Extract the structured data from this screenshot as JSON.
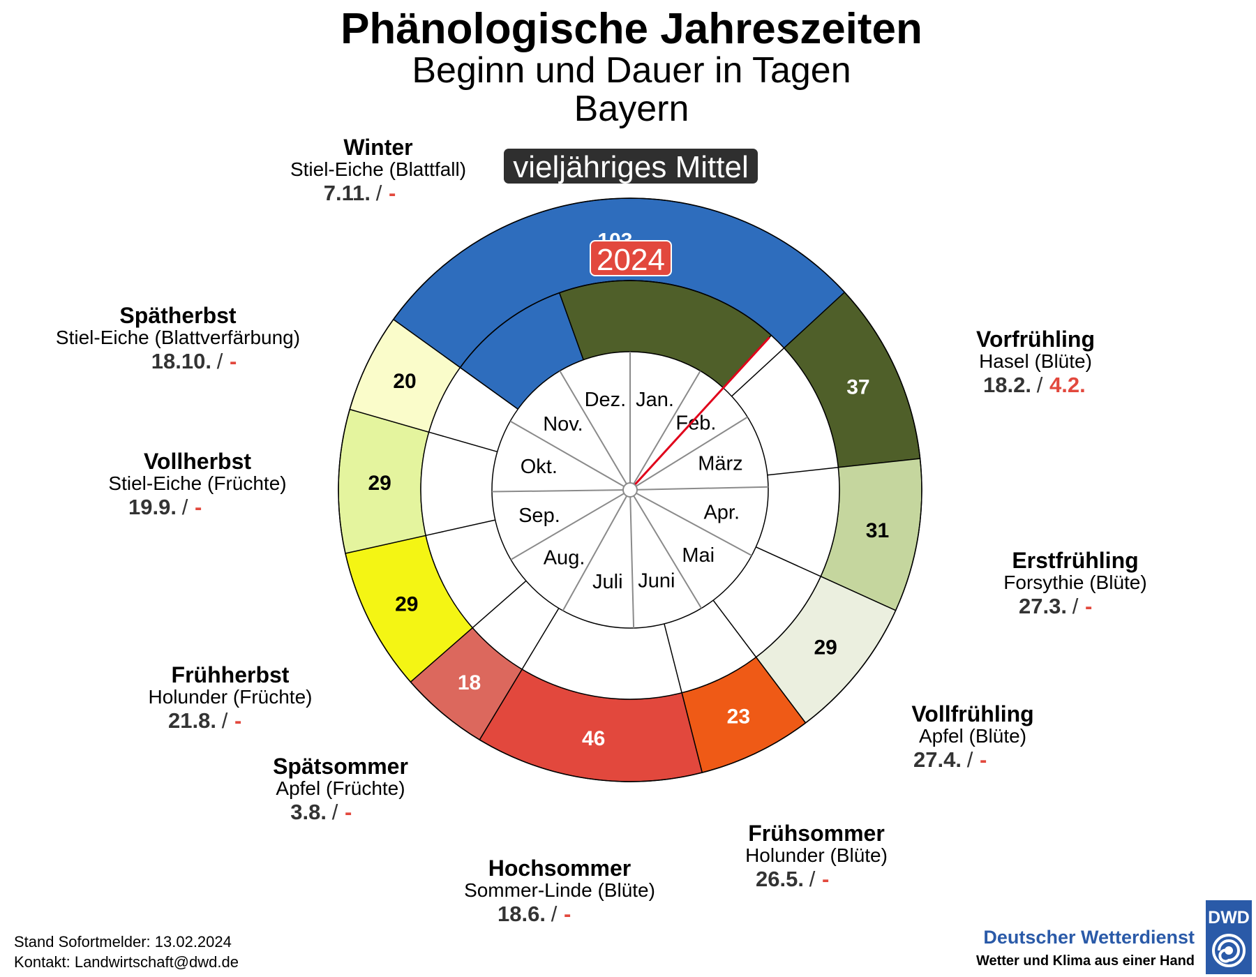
{
  "header": {
    "title": "Phänologische Jahreszeiten",
    "subtitle1": "Beginn und Dauer in Tagen",
    "subtitle2": "Bayern"
  },
  "badges": {
    "mean": "vieljähriges Mittel",
    "current": "2024"
  },
  "footer": {
    "stand": "Stand Sofortmelder: 13.02.2024",
    "kontakt": "Kontakt: Landwirtschaft@dwd.de"
  },
  "logo": {
    "box_text": "DWD",
    "name": "Deutscher Wetterdienst",
    "slogan": "Wetter und Klima aus einer Hand"
  },
  "chart_data": {
    "type": "pie",
    "ring_outer": "vieljähriges Mittel",
    "ring_middle": "2024",
    "months": [
      "Jan.",
      "Feb.",
      "März",
      "Apr.",
      "Mai",
      "Juni",
      "Juli",
      "Aug.",
      "Sep.",
      "Okt.",
      "Nov.",
      "Dez."
    ],
    "seasons": [
      {
        "name": "Winter",
        "plant": "Stiel-Eiche (Blattfall)",
        "start_mean": "7.11.",
        "start_current": "-",
        "duration_mean": 103,
        "color": "#2e6dbd",
        "label_color": "#ffffff"
      },
      {
        "name": "Vorfrühling",
        "plant": "Hasel (Blüte)",
        "start_mean": "18.2.",
        "start_current": "4.2.",
        "duration_mean": 37,
        "color": "#4f5f29",
        "label_color": "#ffffff"
      },
      {
        "name": "Erstfrühling",
        "plant": "Forsythie (Blüte)",
        "start_mean": "27.3.",
        "start_current": "-",
        "duration_mean": 31,
        "color": "#c5d69e",
        "label_color": "#000000"
      },
      {
        "name": "Vollfrühling",
        "plant": "Apfel (Blüte)",
        "start_mean": "27.4.",
        "start_current": "-",
        "duration_mean": 29,
        "color": "#ebefdf",
        "label_color": "#000000"
      },
      {
        "name": "Frühsommer",
        "plant": "Holunder (Blüte)",
        "start_mean": "26.5.",
        "start_current": "-",
        "duration_mean": 23,
        "color": "#ef5a16",
        "label_color": "#ffffff"
      },
      {
        "name": "Hochsommer",
        "plant": "Sommer-Linde (Blüte)",
        "start_mean": "18.6.",
        "start_current": "-",
        "duration_mean": 46,
        "color": "#e2483d",
        "label_color": "#ffffff"
      },
      {
        "name": "Spätsommer",
        "plant": "Apfel (Früchte)",
        "start_mean": "3.8.",
        "start_current": "-",
        "duration_mean": 18,
        "color": "#dc685d",
        "label_color": "#ffffff"
      },
      {
        "name": "Frühherbst",
        "plant": "Holunder (Früchte)",
        "start_mean": "21.8.",
        "start_current": "-",
        "duration_mean": 29,
        "color": "#f4f514",
        "label_color": "#000000"
      },
      {
        "name": "Vollherbst",
        "plant": "Stiel-Eiche (Früchte)",
        "start_mean": "19.9.",
        "start_current": "-",
        "duration_mean": 29,
        "color": "#e4f49e",
        "label_color": "#000000"
      },
      {
        "name": "Spätherbst",
        "plant": "Stiel-Eiche (Blattverfärbung)",
        "start_mean": "18.10.",
        "start_current": "-",
        "duration_mean": 20,
        "color": "#fafcca",
        "label_color": "#000000"
      }
    ],
    "current_year": {
      "segments": [
        {
          "season": "Winter",
          "duration": 35,
          "color": "#2e6dbd",
          "label_color": "#ffffff"
        },
        {
          "season": "Vorfrühling",
          "duration": null,
          "color": "#4f5f29"
        }
      ],
      "report_date": "13.02.2024"
    }
  }
}
